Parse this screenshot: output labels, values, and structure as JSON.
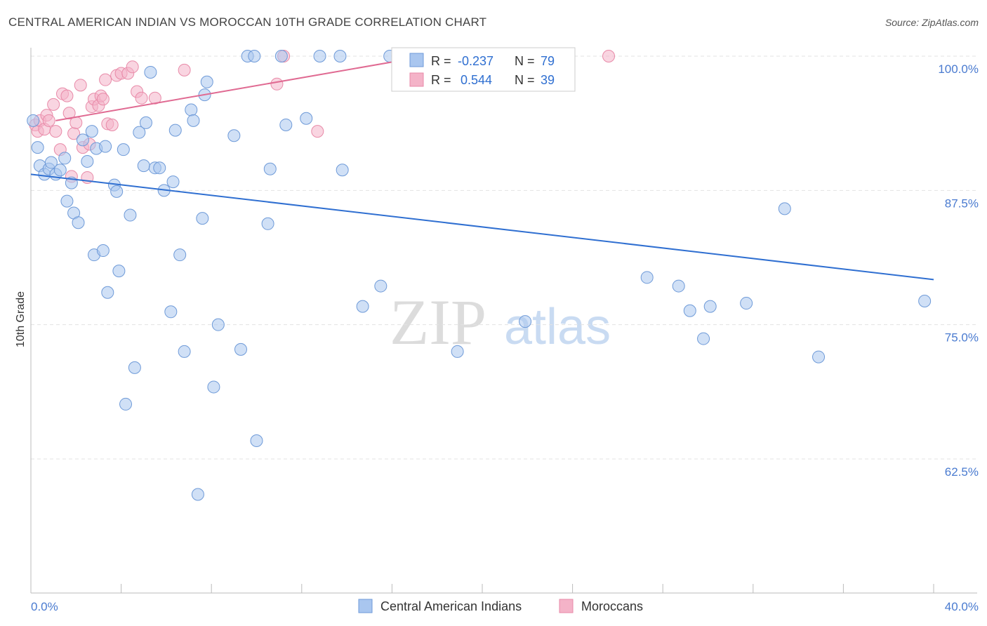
{
  "title": "CENTRAL AMERICAN INDIAN VS MOROCCAN 10TH GRADE CORRELATION CHART",
  "source": "Source: ZipAtlas.com",
  "colors": {
    "blue_fill": "#a9c6ef",
    "blue_stroke": "#6e9ad8",
    "blue_line": "#2f6fd1",
    "pink_fill": "#f4b3c8",
    "pink_stroke": "#e88aa8",
    "pink_line": "#e06a92",
    "grid": "#e3e3e3",
    "axis_text": "#4a7bd0"
  },
  "watermark": {
    "zip": "ZIP",
    "atlas": "atlas"
  },
  "stats": {
    "blue": {
      "r_label": "R =",
      "r_value": "-0.237",
      "n_label": "N =",
      "n_value": "79"
    },
    "pink": {
      "r_label": "R =",
      "r_value": "0.544",
      "n_label": "N =",
      "n_value": "39"
    }
  },
  "chart_data": {
    "type": "scatter",
    "title": "CENTRAL AMERICAN INDIAN VS MOROCCAN 10TH GRADE CORRELATION CHART",
    "xlabel": "",
    "ylabel": "10th Grade",
    "xlim": [
      0,
      40
    ],
    "ylim": [
      50.5,
      101
    ],
    "x_tick_labels": [
      "0.0%",
      "40.0%"
    ],
    "y_ticks": [
      100,
      87.5,
      75,
      62.5
    ],
    "y_tick_labels": [
      "100.0%",
      "87.5%",
      "75.0%",
      "62.5%"
    ],
    "grid": true,
    "legend_position": "bottom-center",
    "series": [
      {
        "name": "Central American Indians",
        "color": "#a9c6ef",
        "trend": {
          "x": [
            0,
            40
          ],
          "y": [
            89.0,
            79.2
          ]
        },
        "points": [
          [
            0.1,
            94.0
          ],
          [
            0.3,
            91.5
          ],
          [
            0.4,
            89.8
          ],
          [
            0.6,
            89.0
          ],
          [
            0.8,
            89.5
          ],
          [
            0.9,
            90.1
          ],
          [
            1.1,
            89.0
          ],
          [
            1.3,
            89.4
          ],
          [
            1.5,
            90.5
          ],
          [
            1.6,
            86.5
          ],
          [
            1.8,
            88.2
          ],
          [
            1.9,
            85.4
          ],
          [
            2.1,
            84.5
          ],
          [
            2.3,
            92.2
          ],
          [
            2.5,
            90.2
          ],
          [
            2.7,
            93.0
          ],
          [
            2.8,
            81.5
          ],
          [
            2.9,
            91.4
          ],
          [
            3.2,
            81.9
          ],
          [
            3.3,
            91.6
          ],
          [
            3.4,
            78.0
          ],
          [
            3.7,
            88.0
          ],
          [
            3.8,
            87.4
          ],
          [
            3.9,
            80.0
          ],
          [
            4.1,
            91.3
          ],
          [
            4.2,
            67.6
          ],
          [
            4.4,
            85.2
          ],
          [
            4.6,
            71.0
          ],
          [
            4.8,
            92.9
          ],
          [
            5.0,
            89.8
          ],
          [
            5.1,
            93.8
          ],
          [
            5.3,
            98.5
          ],
          [
            5.5,
            89.6
          ],
          [
            5.7,
            89.6
          ],
          [
            5.9,
            87.5
          ],
          [
            6.2,
            76.2
          ],
          [
            6.3,
            88.3
          ],
          [
            6.4,
            93.1
          ],
          [
            6.6,
            81.5
          ],
          [
            6.8,
            72.5
          ],
          [
            7.1,
            95.0
          ],
          [
            7.2,
            94.0
          ],
          [
            7.4,
            59.2
          ],
          [
            7.6,
            84.9
          ],
          [
            7.7,
            96.4
          ],
          [
            7.8,
            97.6
          ],
          [
            8.1,
            69.2
          ],
          [
            8.3,
            75.0
          ],
          [
            9.0,
            92.6
          ],
          [
            9.3,
            72.7
          ],
          [
            9.6,
            100.0
          ],
          [
            9.9,
            100.0
          ],
          [
            10.0,
            64.2
          ],
          [
            10.5,
            84.4
          ],
          [
            10.6,
            89.5
          ],
          [
            11.1,
            100.0
          ],
          [
            11.3,
            93.6
          ],
          [
            12.2,
            94.2
          ],
          [
            12.8,
            100.0
          ],
          [
            13.7,
            100.0
          ],
          [
            13.8,
            89.4
          ],
          [
            14.7,
            76.7
          ],
          [
            15.5,
            78.6
          ],
          [
            15.9,
            100.0
          ],
          [
            16.8,
            100.0
          ],
          [
            18.2,
            100.0
          ],
          [
            18.9,
            72.5
          ],
          [
            21.9,
            75.3
          ],
          [
            22.5,
            100.0
          ],
          [
            23.2,
            100.0
          ],
          [
            27.3,
            79.4
          ],
          [
            28.7,
            78.6
          ],
          [
            29.2,
            76.3
          ],
          [
            29.8,
            73.7
          ],
          [
            30.1,
            76.7
          ],
          [
            31.7,
            77.0
          ],
          [
            33.4,
            85.8
          ],
          [
            34.9,
            72.0
          ],
          [
            39.6,
            77.2
          ]
        ]
      },
      {
        "name": "Moroccans",
        "color": "#f4b3c8",
        "trend": {
          "x": [
            1.1,
            17.5
          ],
          "y": [
            94.0,
            100.0
          ]
        },
        "points": [
          [
            0.2,
            93.6
          ],
          [
            0.3,
            93.0
          ],
          [
            0.4,
            94.0
          ],
          [
            0.6,
            93.2
          ],
          [
            0.7,
            94.5
          ],
          [
            0.8,
            94.0
          ],
          [
            1.0,
            95.5
          ],
          [
            1.1,
            93.0
          ],
          [
            1.3,
            91.3
          ],
          [
            1.4,
            96.5
          ],
          [
            1.6,
            96.3
          ],
          [
            1.7,
            94.7
          ],
          [
            1.8,
            88.8
          ],
          [
            1.9,
            92.8
          ],
          [
            2.0,
            93.8
          ],
          [
            2.2,
            97.3
          ],
          [
            2.3,
            91.5
          ],
          [
            2.5,
            88.7
          ],
          [
            2.6,
            91.8
          ],
          [
            2.7,
            95.3
          ],
          [
            2.8,
            96.0
          ],
          [
            3.0,
            95.4
          ],
          [
            3.1,
            96.3
          ],
          [
            3.2,
            96.0
          ],
          [
            3.3,
            97.8
          ],
          [
            3.4,
            93.7
          ],
          [
            3.6,
            93.6
          ],
          [
            3.8,
            98.2
          ],
          [
            4.0,
            98.4
          ],
          [
            4.3,
            98.4
          ],
          [
            4.5,
            99.0
          ],
          [
            4.7,
            96.7
          ],
          [
            4.9,
            96.1
          ],
          [
            5.5,
            96.1
          ],
          [
            6.8,
            98.7
          ],
          [
            10.9,
            97.4
          ],
          [
            11.2,
            100.0
          ],
          [
            12.7,
            93.0
          ],
          [
            25.6,
            100.0
          ]
        ]
      }
    ]
  },
  "legend": {
    "blue_label": "Central American Indians",
    "pink_label": "Moroccans"
  }
}
